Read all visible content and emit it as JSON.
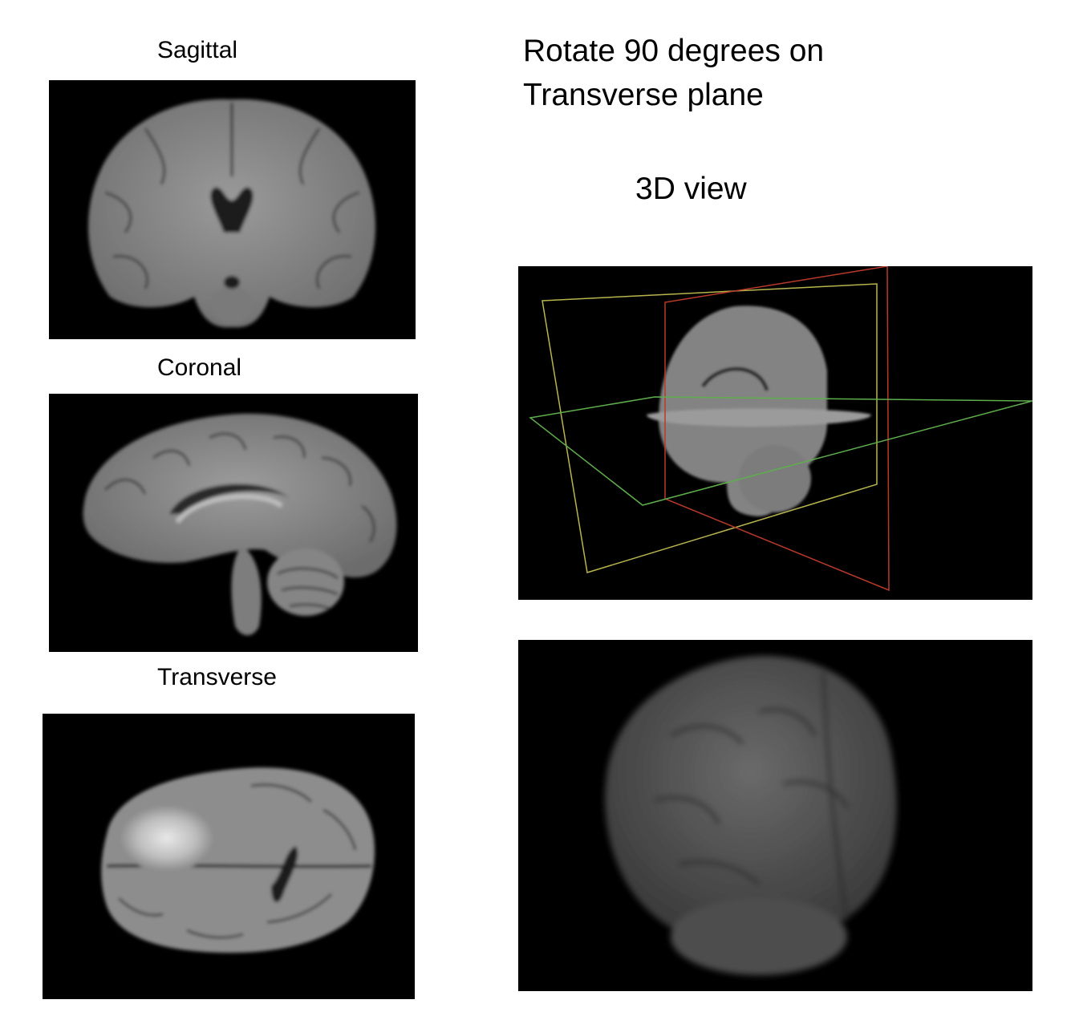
{
  "views": {
    "sagittal_label": "Sagittal",
    "coronal_label": "Coronal",
    "transverse_label": "Transverse"
  },
  "instruction": {
    "line1": "Rotate 90 degrees on",
    "line2": "Transverse plane"
  },
  "view3d": {
    "title": "3D view"
  },
  "colors": {
    "panel_background": "#000000",
    "plane_yellow": "#b9b54e",
    "plane_red": "#b83a2a",
    "plane_green": "#5fae4c",
    "tissue_gray": "#8a8a8a"
  }
}
